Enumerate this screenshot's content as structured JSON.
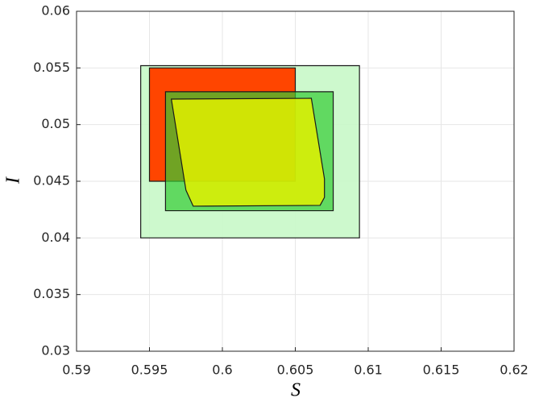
{
  "chart_data": {
    "type": "polygon",
    "x_label": "S",
    "y_label": "I",
    "xlim": [
      0.59,
      0.62
    ],
    "xticks": [
      0.59,
      0.595,
      0.6,
      0.605,
      0.61,
      0.615,
      0.62
    ],
    "ylim": [
      0.03,
      0.06
    ],
    "yticks": [
      0.03,
      0.035,
      0.04,
      0.045,
      0.05,
      0.055,
      0.06
    ],
    "grid": true,
    "series": [
      {
        "color": "#c8f8c8",
        "alpha": 0.9,
        "x": [
          0.5944,
          0.6094,
          0.6094,
          0.5944
        ],
        "y": [
          0.0552,
          0.0552,
          0.04,
          0.04
        ]
      },
      {
        "color": "#ff4500",
        "alpha": 1,
        "x": [
          0.595,
          0.605,
          0.605,
          0.595
        ],
        "y": [
          0.055,
          0.055,
          0.045,
          0.045
        ]
      },
      {
        "color": "#33cc33",
        "alpha": 0.7,
        "x": [
          0.5961,
          0.6076,
          0.6076,
          0.5961
        ],
        "y": [
          0.0529,
          0.0529,
          0.0424,
          0.0424
        ]
      },
      {
        "color": "#e0f000",
        "alpha": 0.85,
        "x": [
          0.5965,
          0.6061,
          0.607,
          0.607,
          0.6067,
          0.598,
          0.5975
        ],
        "y": [
          0.05225,
          0.05232,
          0.04521,
          0.04358,
          0.04287,
          0.0428,
          0.04422
        ]
      }
    ]
  }
}
